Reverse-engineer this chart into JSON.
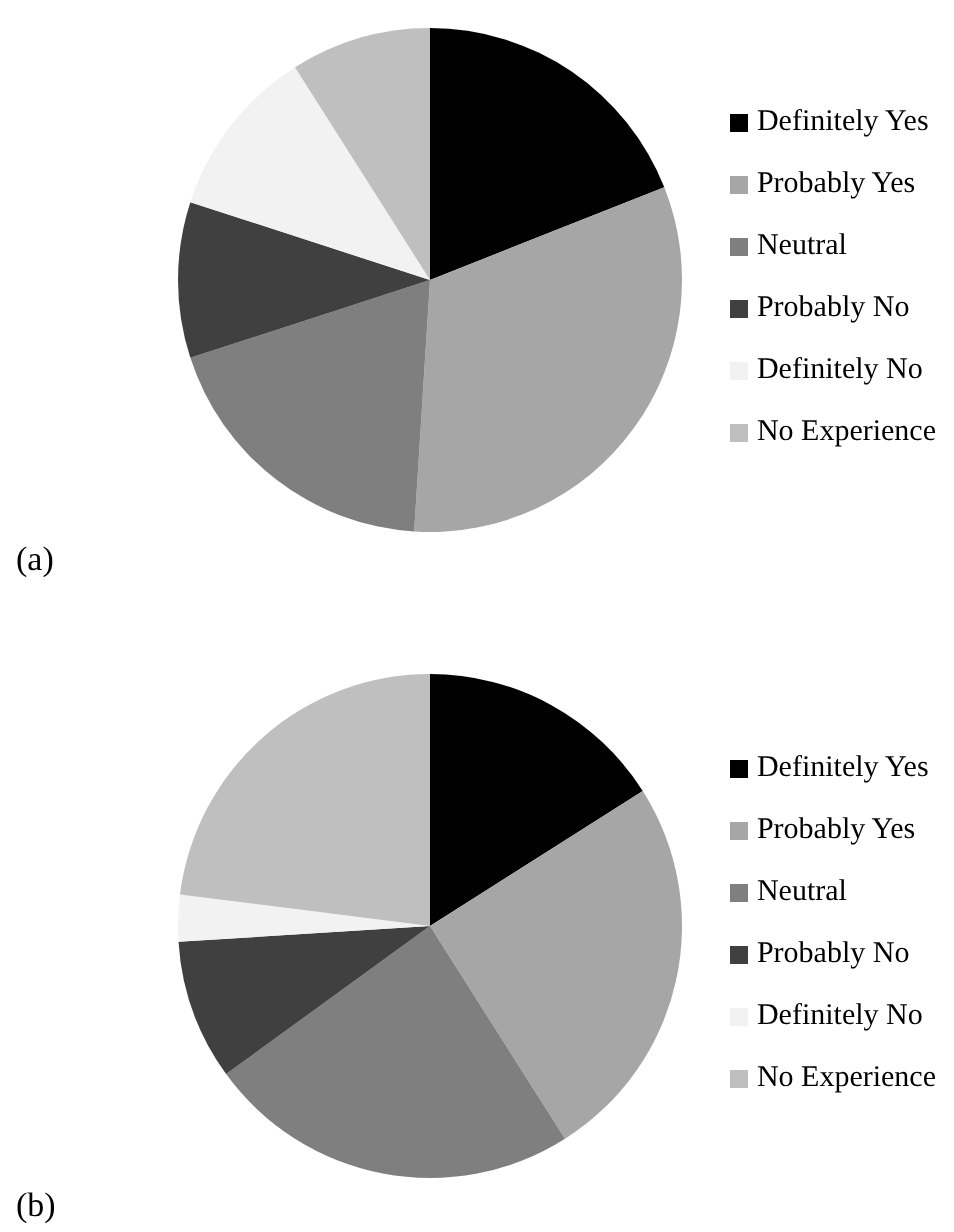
{
  "chart_data": [
    {
      "type": "pie",
      "title": "(a)",
      "categories": [
        "Definitely Yes",
        "Probably Yes",
        "Neutral",
        "Probably No",
        "Definitely No",
        "No Experience"
      ],
      "values": [
        19,
        32,
        19,
        10,
        11,
        9
      ],
      "colors": [
        "#000000",
        "#a6a6a6",
        "#7f7f7f",
        "#404040",
        "#f2f2f2",
        "#bfbfbf"
      ],
      "legend": "right"
    },
    {
      "type": "pie",
      "title": "(b)",
      "categories": [
        "Definitely Yes",
        "Probably Yes",
        "Neutral",
        "Probably No",
        "Definitely No",
        "No Experience"
      ],
      "values": [
        16,
        25,
        24,
        9,
        3,
        23
      ],
      "colors": [
        "#000000",
        "#a6a6a6",
        "#7f7f7f",
        "#404040",
        "#f2f2f2",
        "#bfbfbf"
      ],
      "legend": "right"
    }
  ]
}
